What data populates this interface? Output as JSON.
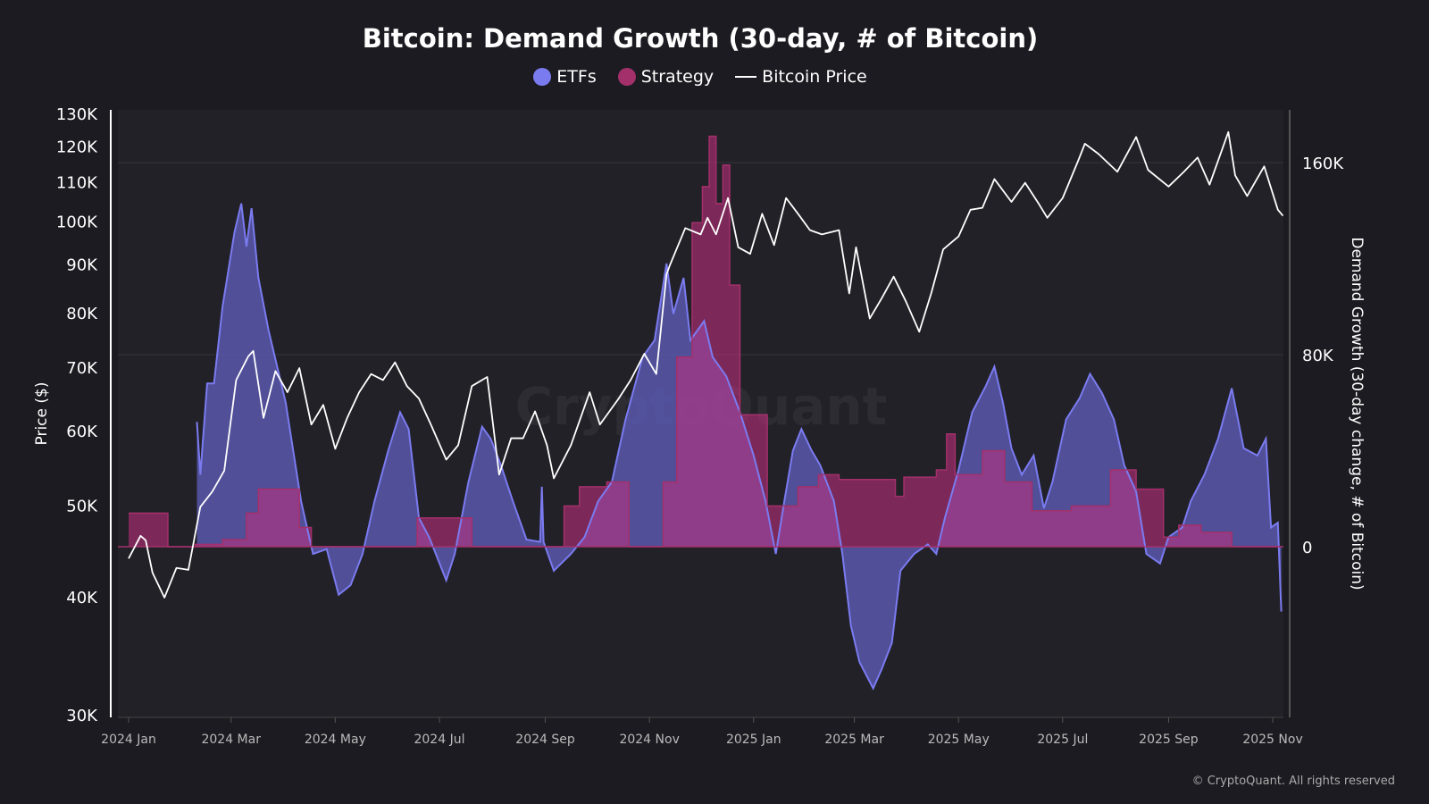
{
  "chart_data": {
    "type": "area",
    "title": "Bitcoin: Demand Growth (30-day, # of Bitcoin)",
    "legend": [
      {
        "name": "ETFs",
        "color": "#7b7bf0",
        "marker": "circle"
      },
      {
        "name": "Strategy",
        "color": "#a3306b",
        "marker": "circle"
      },
      {
        "name": "Bitcoin Price",
        "color": "#ffffff",
        "marker": "line"
      }
    ],
    "legend_placement": "top-center",
    "xlabel": "",
    "ylabel_left": "Price ($)",
    "ylabel_right": "Demand Growth (30-day change, # of Bitcoin)",
    "y_left_scale": "log",
    "y_left_range": [
      30000,
      131000
    ],
    "y_left_ticks": [
      "30K",
      "40K",
      "50K",
      "60K",
      "70K",
      "80K",
      "90K",
      "100K",
      "110K",
      "120K",
      "130K"
    ],
    "y_left_tick_values": [
      30000,
      40000,
      50000,
      60000,
      70000,
      80000,
      90000,
      100000,
      110000,
      120000,
      130000
    ],
    "y_right_range": [
      -71000,
      182000
    ],
    "y_right_ticks": [
      "0",
      "80K",
      "160K"
    ],
    "y_right_tick_values": [
      0,
      80000,
      160000
    ],
    "x_range": [
      "2024-01-01",
      "2025-11-07"
    ],
    "x_ticks": [
      "2024 Jan",
      "2024 Mar",
      "2024 May",
      "2024 Jul",
      "2024 Sep",
      "2024 Nov",
      "2025 Jan",
      "2025 Mar",
      "2025 May",
      "2025 Jul",
      "2025 Sep",
      "2025 Nov"
    ],
    "x_tick_dates": [
      "2024-01-01",
      "2024-03-01",
      "2024-05-01",
      "2024-07-01",
      "2024-09-01",
      "2024-11-01",
      "2025-01-01",
      "2025-03-01",
      "2025-05-01",
      "2025-07-01",
      "2025-09-01",
      "2025-11-01"
    ],
    "grid": true,
    "watermark": "CryptoQuant",
    "series": [
      {
        "name": "ETFs",
        "axis": "right",
        "type": "area",
        "points": [
          [
            "2024-02-10",
            52000
          ],
          [
            "2024-02-12",
            30000
          ],
          [
            "2024-02-16",
            68000
          ],
          [
            "2024-02-20",
            68000
          ],
          [
            "2024-02-25",
            100000
          ],
          [
            "2024-03-03",
            131000
          ],
          [
            "2024-03-07",
            143000
          ],
          [
            "2024-03-10",
            125000
          ],
          [
            "2024-03-13",
            141000
          ],
          [
            "2024-03-17",
            112000
          ],
          [
            "2024-03-23",
            90000
          ],
          [
            "2024-04-02",
            60000
          ],
          [
            "2024-04-11",
            19000
          ],
          [
            "2024-04-18",
            -3000
          ],
          [
            "2024-04-26",
            -1000
          ],
          [
            "2024-05-03",
            -20000
          ],
          [
            "2024-05-10",
            -16000
          ],
          [
            "2024-05-17",
            -3000
          ],
          [
            "2024-05-24",
            19000
          ],
          [
            "2024-06-01",
            40000
          ],
          [
            "2024-06-08",
            56000
          ],
          [
            "2024-06-13",
            49000
          ],
          [
            "2024-06-19",
            12000
          ],
          [
            "2024-06-25",
            4000
          ],
          [
            "2024-07-05",
            -14000
          ],
          [
            "2024-07-10",
            -3000
          ],
          [
            "2024-07-18",
            27000
          ],
          [
            "2024-07-26",
            50000
          ],
          [
            "2024-07-31",
            45000
          ],
          [
            "2024-08-06",
            34000
          ],
          [
            "2024-08-13",
            19000
          ],
          [
            "2024-08-21",
            3000
          ],
          [
            "2024-08-29",
            2000
          ],
          [
            "2024-08-30",
            25000
          ],
          [
            "2024-08-31",
            2000
          ],
          [
            "2024-09-06",
            -10000
          ],
          [
            "2024-09-16",
            -3000
          ],
          [
            "2024-09-24",
            4000
          ],
          [
            "2024-10-02",
            19000
          ],
          [
            "2024-10-10",
            27000
          ],
          [
            "2024-10-18",
            53000
          ],
          [
            "2024-10-28",
            79000
          ],
          [
            "2024-11-04",
            86000
          ],
          [
            "2024-11-11",
            118000
          ],
          [
            "2024-11-15",
            97000
          ],
          [
            "2024-11-21",
            112000
          ],
          [
            "2024-11-25",
            86000
          ],
          [
            "2024-12-03",
            94000
          ],
          [
            "2024-12-08",
            79000
          ],
          [
            "2024-12-16",
            71000
          ],
          [
            "2024-12-24",
            56000
          ],
          [
            "2025-01-01",
            38000
          ],
          [
            "2025-01-08",
            19000
          ],
          [
            "2025-01-14",
            -3000
          ],
          [
            "2025-01-19",
            19000
          ],
          [
            "2025-01-24",
            40000
          ],
          [
            "2025-01-29",
            49000
          ],
          [
            "2025-02-04",
            40000
          ],
          [
            "2025-02-09",
            34000
          ],
          [
            "2025-02-17",
            19000
          ],
          [
            "2025-02-22",
            -3000
          ],
          [
            "2025-02-27",
            -33000
          ],
          [
            "2025-03-04",
            -48000
          ],
          [
            "2025-03-12",
            -59000
          ],
          [
            "2025-03-17",
            -51000
          ],
          [
            "2025-03-23",
            -40000
          ],
          [
            "2025-03-28",
            -10000
          ],
          [
            "2025-04-05",
            -3000
          ],
          [
            "2025-04-13",
            1000
          ],
          [
            "2025-04-18",
            -3000
          ],
          [
            "2025-04-23",
            12000
          ],
          [
            "2025-05-01",
            32000
          ],
          [
            "2025-05-09",
            56000
          ],
          [
            "2025-05-17",
            67000
          ],
          [
            "2025-05-22",
            75000
          ],
          [
            "2025-05-27",
            60000
          ],
          [
            "2025-06-01",
            41000
          ],
          [
            "2025-06-07",
            30000
          ],
          [
            "2025-06-14",
            38000
          ],
          [
            "2025-06-20",
            16000
          ],
          [
            "2025-06-25",
            27000
          ],
          [
            "2025-07-03",
            53000
          ],
          [
            "2025-07-11",
            62000
          ],
          [
            "2025-07-17",
            72000
          ],
          [
            "2025-07-24",
            64000
          ],
          [
            "2025-07-31",
            53000
          ],
          [
            "2025-08-06",
            34000
          ],
          [
            "2025-08-13",
            23000
          ],
          [
            "2025-08-19",
            -3000
          ],
          [
            "2025-08-27",
            -7000
          ],
          [
            "2025-09-01",
            4000
          ],
          [
            "2025-09-09",
            8000
          ],
          [
            "2025-09-14",
            19000
          ],
          [
            "2025-09-22",
            30000
          ],
          [
            "2025-09-30",
            45000
          ],
          [
            "2025-10-08",
            66000
          ],
          [
            "2025-10-15",
            41000
          ],
          [
            "2025-10-23",
            38000
          ],
          [
            "2025-10-28",
            45000
          ],
          [
            "2025-10-31",
            8000
          ],
          [
            "2025-11-04",
            10000
          ],
          [
            "2025-11-06",
            -27000
          ]
        ]
      },
      {
        "name": "Strategy",
        "axis": "right",
        "type": "step-area",
        "points": [
          [
            "2024-01-01",
            14000
          ],
          [
            "2024-01-24",
            0
          ],
          [
            "2024-02-09",
            1000
          ],
          [
            "2024-02-25",
            3000
          ],
          [
            "2024-03-10",
            14000
          ],
          [
            "2024-03-17",
            24000
          ],
          [
            "2024-04-10",
            8000
          ],
          [
            "2024-04-17",
            0
          ],
          [
            "2024-06-18",
            12000
          ],
          [
            "2024-07-20",
            0
          ],
          [
            "2024-09-12",
            17000
          ],
          [
            "2024-09-21",
            25000
          ],
          [
            "2024-10-07",
            27000
          ],
          [
            "2024-10-20",
            0
          ],
          [
            "2024-11-09",
            27000
          ],
          [
            "2024-11-17",
            79000
          ],
          [
            "2024-11-26",
            135000
          ],
          [
            "2024-12-02",
            150000
          ],
          [
            "2024-12-06",
            171000
          ],
          [
            "2024-12-10",
            143000
          ],
          [
            "2024-12-14",
            159000
          ],
          [
            "2024-12-18",
            109000
          ],
          [
            "2024-12-24",
            55000
          ],
          [
            "2025-01-09",
            17000
          ],
          [
            "2025-01-27",
            25000
          ],
          [
            "2025-02-08",
            30000
          ],
          [
            "2025-02-20",
            28000
          ],
          [
            "2025-03-25",
            21000
          ],
          [
            "2025-03-30",
            29000
          ],
          [
            "2025-04-18",
            32000
          ],
          [
            "2025-04-24",
            47000
          ],
          [
            "2025-04-29",
            30000
          ],
          [
            "2025-05-15",
            40000
          ],
          [
            "2025-05-28",
            27000
          ],
          [
            "2025-06-13",
            15000
          ],
          [
            "2025-07-06",
            17000
          ],
          [
            "2025-07-29",
            32000
          ],
          [
            "2025-08-13",
            24000
          ],
          [
            "2025-08-29",
            4000
          ],
          [
            "2025-09-07",
            9000
          ],
          [
            "2025-09-20",
            6000
          ],
          [
            "2025-10-08",
            0
          ],
          [
            "2025-11-06",
            0
          ]
        ]
      },
      {
        "name": "Bitcoin Price",
        "axis": "left",
        "type": "line",
        "points": [
          [
            "2024-01-01",
            44000
          ],
          [
            "2024-01-08",
            46500
          ],
          [
            "2024-01-11",
            46000
          ],
          [
            "2024-01-15",
            42500
          ],
          [
            "2024-01-22",
            40000
          ],
          [
            "2024-01-29",
            43000
          ],
          [
            "2024-02-05",
            42800
          ],
          [
            "2024-02-12",
            49900
          ],
          [
            "2024-02-19",
            51800
          ],
          [
            "2024-02-26",
            54500
          ],
          [
            "2024-03-04",
            68000
          ],
          [
            "2024-03-11",
            72000
          ],
          [
            "2024-03-14",
            73000
          ],
          [
            "2024-03-20",
            62000
          ],
          [
            "2024-03-27",
            69500
          ],
          [
            "2024-04-03",
            66000
          ],
          [
            "2024-04-10",
            70000
          ],
          [
            "2024-04-17",
            61000
          ],
          [
            "2024-04-24",
            64000
          ],
          [
            "2024-05-01",
            57500
          ],
          [
            "2024-05-08",
            62000
          ],
          [
            "2024-05-15",
            66000
          ],
          [
            "2024-05-22",
            69000
          ],
          [
            "2024-05-29",
            68000
          ],
          [
            "2024-06-05",
            71000
          ],
          [
            "2024-06-12",
            67000
          ],
          [
            "2024-06-19",
            65000
          ],
          [
            "2024-06-26",
            61000
          ],
          [
            "2024-07-05",
            56000
          ],
          [
            "2024-07-12",
            58000
          ],
          [
            "2024-07-20",
            67000
          ],
          [
            "2024-07-29",
            68500
          ],
          [
            "2024-08-05",
            54000
          ],
          [
            "2024-08-12",
            59000
          ],
          [
            "2024-08-19",
            59000
          ],
          [
            "2024-08-26",
            63000
          ],
          [
            "2024-09-02",
            58000
          ],
          [
            "2024-09-06",
            53500
          ],
          [
            "2024-09-16",
            58000
          ],
          [
            "2024-09-27",
            66000
          ],
          [
            "2024-10-03",
            61000
          ],
          [
            "2024-10-14",
            65000
          ],
          [
            "2024-10-21",
            68000
          ],
          [
            "2024-10-29",
            72500
          ],
          [
            "2024-11-05",
            69000
          ],
          [
            "2024-11-11",
            88000
          ],
          [
            "2024-11-13",
            90000
          ],
          [
            "2024-11-22",
            98500
          ],
          [
            "2024-12-01",
            97000
          ],
          [
            "2024-12-05",
            101000
          ],
          [
            "2024-12-10",
            97000
          ],
          [
            "2024-12-17",
            106000
          ],
          [
            "2024-12-23",
            94000
          ],
          [
            "2024-12-30",
            92500
          ],
          [
            "2025-01-06",
            102000
          ],
          [
            "2025-01-13",
            94500
          ],
          [
            "2025-01-20",
            106000
          ],
          [
            "2025-01-27",
            102000
          ],
          [
            "2025-02-03",
            98000
          ],
          [
            "2025-02-10",
            97000
          ],
          [
            "2025-02-20",
            98000
          ],
          [
            "2025-02-26",
            84000
          ],
          [
            "2025-03-02",
            94000
          ],
          [
            "2025-03-10",
            79000
          ],
          [
            "2025-03-17",
            83000
          ],
          [
            "2025-03-24",
            87500
          ],
          [
            "2025-03-31",
            82500
          ],
          [
            "2025-04-08",
            76500
          ],
          [
            "2025-04-15",
            84000
          ],
          [
            "2025-04-22",
            93500
          ],
          [
            "2025-05-01",
            96500
          ],
          [
            "2025-05-08",
            103000
          ],
          [
            "2025-05-15",
            103500
          ],
          [
            "2025-05-22",
            111000
          ],
          [
            "2025-06-01",
            105000
          ],
          [
            "2025-06-09",
            110000
          ],
          [
            "2025-06-17",
            104500
          ],
          [
            "2025-06-22",
            101000
          ],
          [
            "2025-07-01",
            106000
          ],
          [
            "2025-07-10",
            116000
          ],
          [
            "2025-07-14",
            121000
          ],
          [
            "2025-07-22",
            118000
          ],
          [
            "2025-08-02",
            113000
          ],
          [
            "2025-08-13",
            123000
          ],
          [
            "2025-08-20",
            113500
          ],
          [
            "2025-09-01",
            109000
          ],
          [
            "2025-09-10",
            113000
          ],
          [
            "2025-09-18",
            117000
          ],
          [
            "2025-09-25",
            109500
          ],
          [
            "2025-10-06",
            124500
          ],
          [
            "2025-10-10",
            112000
          ],
          [
            "2025-10-17",
            106500
          ],
          [
            "2025-10-27",
            114500
          ],
          [
            "2025-11-04",
            103000
          ],
          [
            "2025-11-07",
            101500
          ]
        ]
      }
    ]
  },
  "footer": {
    "copyright": "© CryptoQuant. All rights reserved"
  }
}
